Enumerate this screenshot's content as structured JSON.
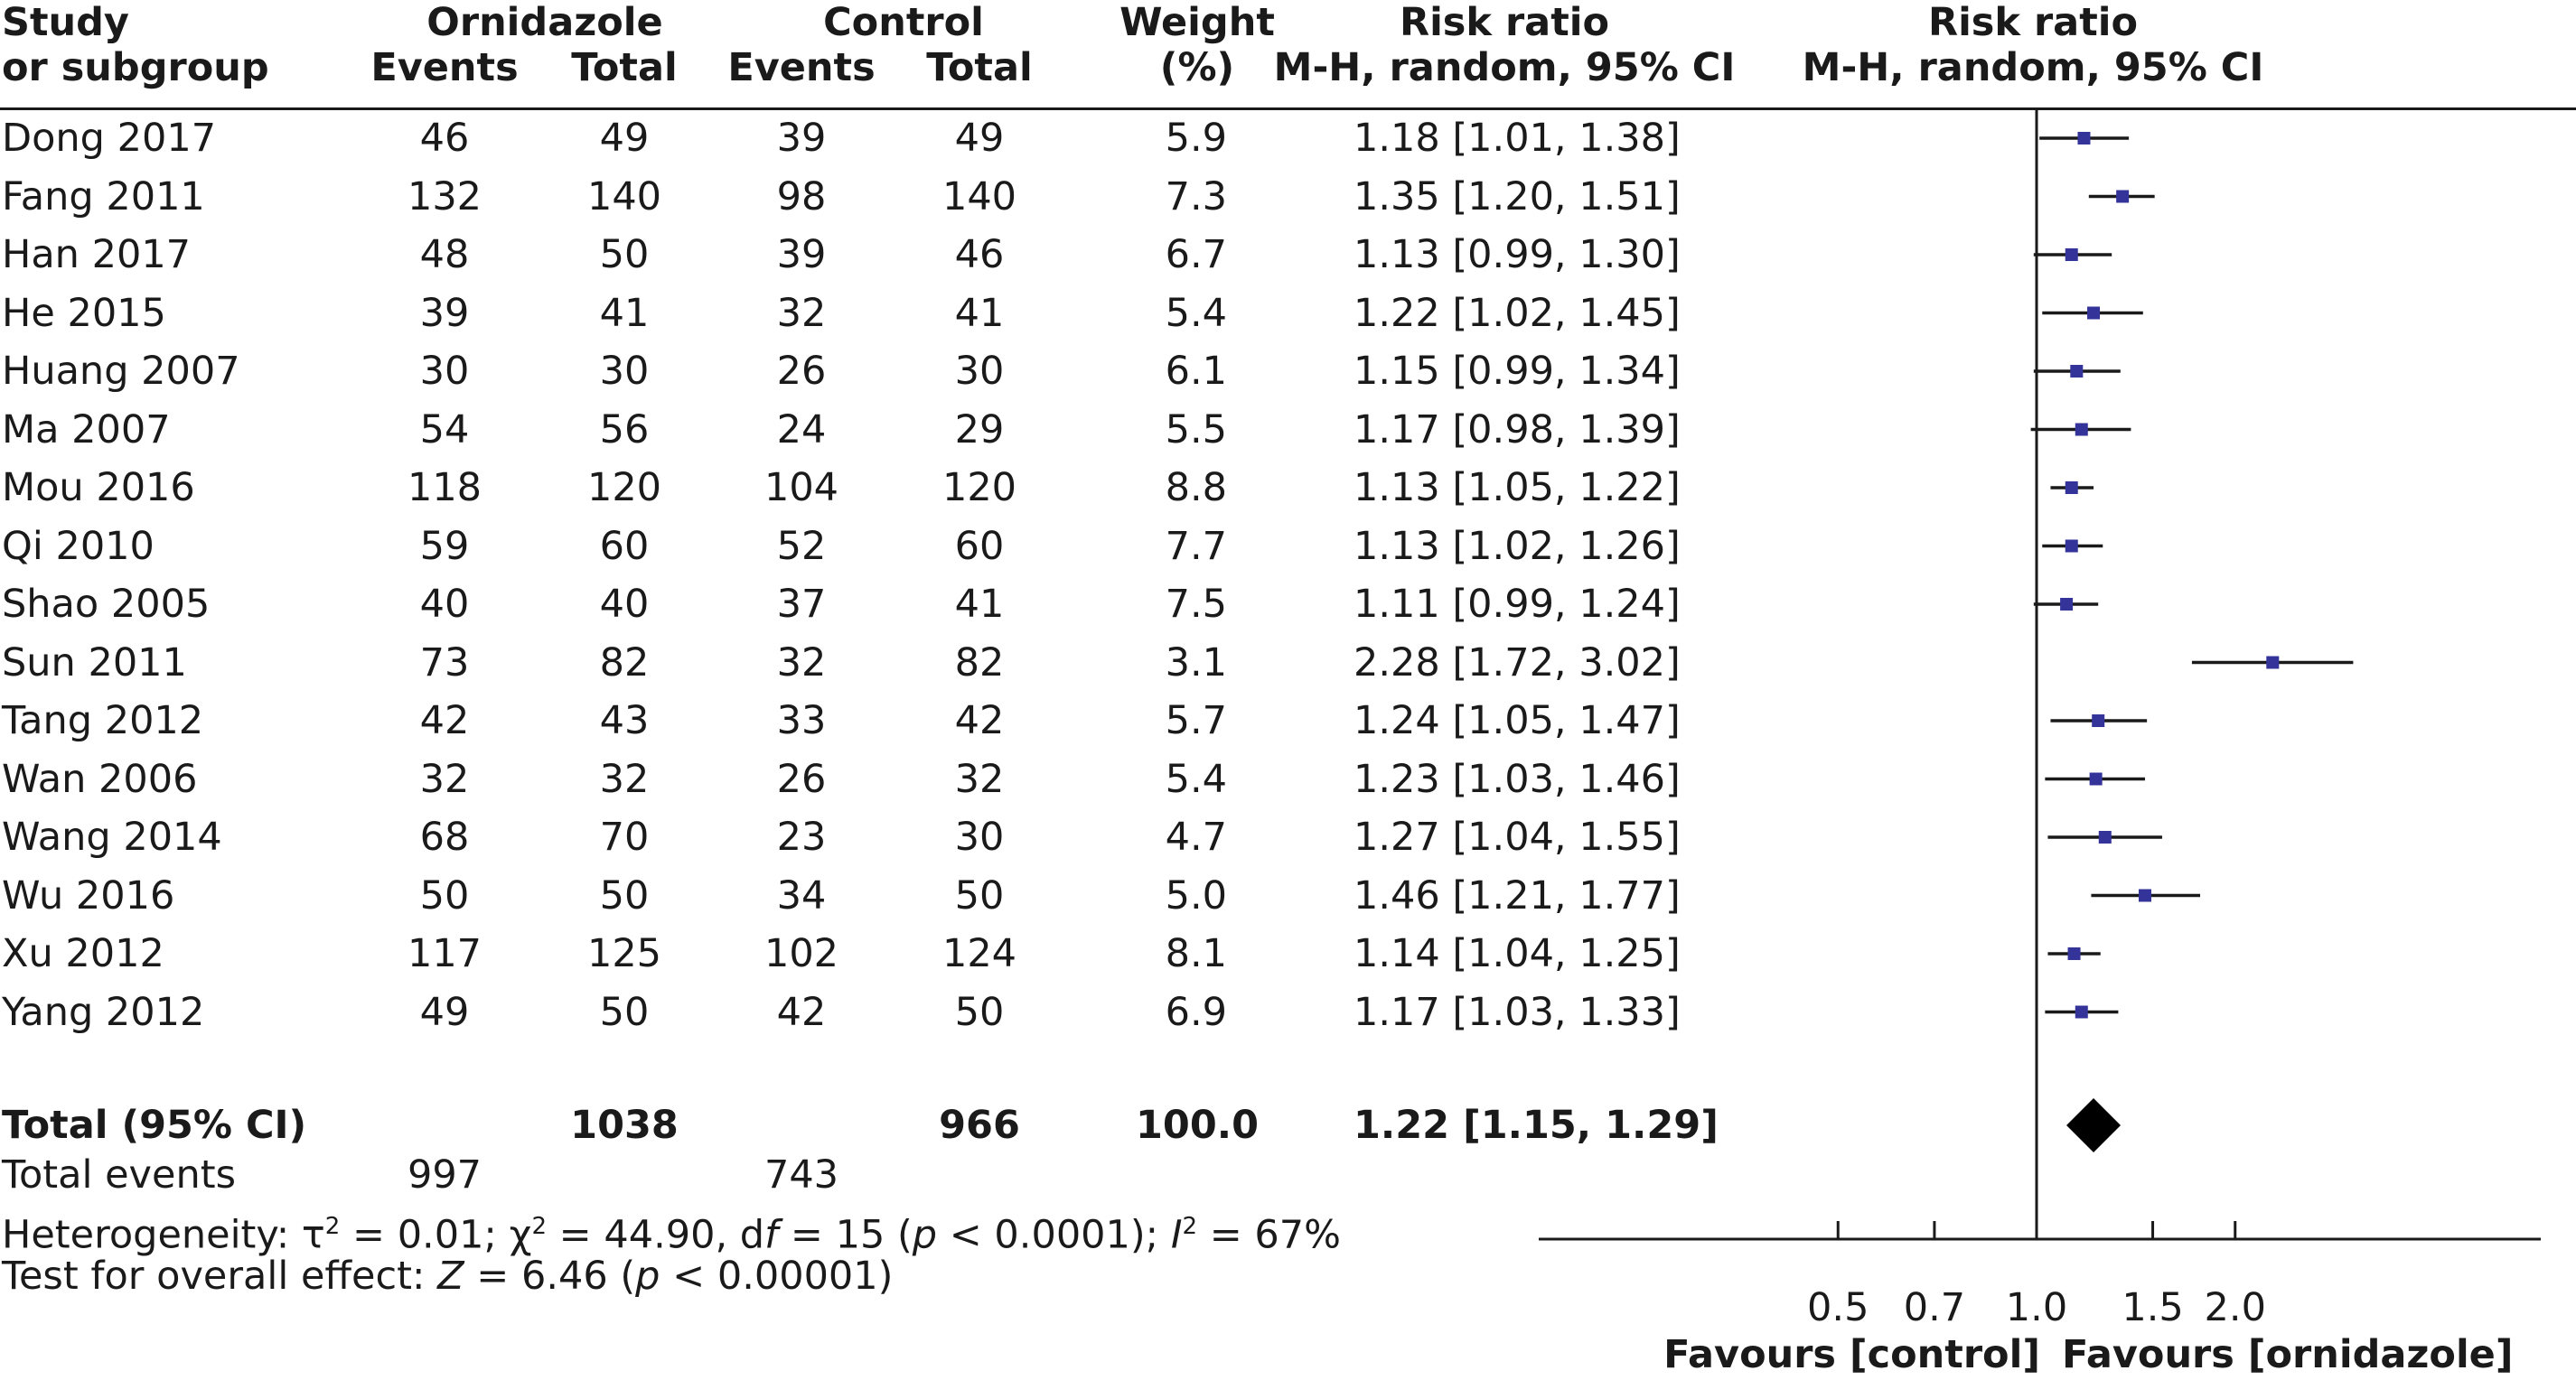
{
  "headers": {
    "study": [
      "Study",
      "or subgroup"
    ],
    "group1": "Ornidazole",
    "group2": "Control",
    "events": "Events",
    "total": "Total",
    "weight": [
      "Weight",
      "(%)"
    ],
    "rr_text": [
      "Risk ratio",
      "M-H, random, 95% CI"
    ],
    "rr_plot": [
      "Risk ratio",
      "M-H, random, 95% CI"
    ]
  },
  "studies": [
    {
      "name": "Dong 2017",
      "e1": "46",
      "t1": "49",
      "e2": "39",
      "t2": "49",
      "weight": "5.9",
      "ci_text": "1.18 [1.01, 1.38]"
    },
    {
      "name": "Fang 2011",
      "e1": "132",
      "t1": "140",
      "e2": "98",
      "t2": "140",
      "weight": "7.3",
      "ci_text": "1.35 [1.20, 1.51]"
    },
    {
      "name": "Han 2017",
      "e1": "48",
      "t1": "50",
      "e2": "39",
      "t2": "46",
      "weight": "6.7",
      "ci_text": "1.13 [0.99, 1.30]"
    },
    {
      "name": "He 2015",
      "e1": "39",
      "t1": "41",
      "e2": "32",
      "t2": "41",
      "weight": "5.4",
      "ci_text": "1.22 [1.02, 1.45]"
    },
    {
      "name": "Huang 2007",
      "e1": "30",
      "t1": "30",
      "e2": "26",
      "t2": "30",
      "weight": "6.1",
      "ci_text": "1.15 [0.99, 1.34]"
    },
    {
      "name": "Ma 2007",
      "e1": "54",
      "t1": "56",
      "e2": "24",
      "t2": "29",
      "weight": "5.5",
      "ci_text": "1.17 [0.98, 1.39]"
    },
    {
      "name": "Mou 2016",
      "e1": "118",
      "t1": "120",
      "e2": "104",
      "t2": "120",
      "weight": "8.8",
      "ci_text": "1.13 [1.05, 1.22]"
    },
    {
      "name": "Qi 2010",
      "e1": "59",
      "t1": "60",
      "e2": "52",
      "t2": "60",
      "weight": "7.7",
      "ci_text": "1.13 [1.02, 1.26]"
    },
    {
      "name": "Shao 2005",
      "e1": "40",
      "t1": "40",
      "e2": "37",
      "t2": "41",
      "weight": "7.5",
      "ci_text": "1.11 [0.99, 1.24]"
    },
    {
      "name": "Sun 2011",
      "e1": "73",
      "t1": "82",
      "e2": "32",
      "t2": "82",
      "weight": "3.1",
      "ci_text": "2.28 [1.72, 3.02]"
    },
    {
      "name": "Tang 2012",
      "e1": "42",
      "t1": "43",
      "e2": "33",
      "t2": "42",
      "weight": "5.7",
      "ci_text": "1.24 [1.05, 1.47]"
    },
    {
      "name": "Wan 2006",
      "e1": "32",
      "t1": "32",
      "e2": "26",
      "t2": "32",
      "weight": "5.4",
      "ci_text": "1.23 [1.03, 1.46]"
    },
    {
      "name": "Wang 2014",
      "e1": "68",
      "t1": "70",
      "e2": "23",
      "t2": "30",
      "weight": "4.7",
      "ci_text": "1.27 [1.04, 1.55]"
    },
    {
      "name": "Wu 2016",
      "e1": "50",
      "t1": "50",
      "e2": "34",
      "t2": "50",
      "weight": "5.0",
      "ci_text": "1.46 [1.21, 1.77]"
    },
    {
      "name": "Xu 2012",
      "e1": "117",
      "t1": "125",
      "e2": "102",
      "t2": "124",
      "weight": "8.1",
      "ci_text": "1.14 [1.04, 1.25]"
    },
    {
      "name": "Yang 2012",
      "e1": "49",
      "t1": "50",
      "e2": "42",
      "t2": "50",
      "weight": "6.9",
      "ci_text": "1.17 [1.03, 1.33]"
    }
  ],
  "total": {
    "label": "Total (95% CI)",
    "t1": "1038",
    "t2": "966",
    "weight": "100.0",
    "ci_text": "1.22 [1.15, 1.29]"
  },
  "total_events": {
    "label": "Total events",
    "e1": "997",
    "e2": "743"
  },
  "heterogeneity": {
    "label": "Heterogeneity: ",
    "tau": "τ",
    "tau_val": " = 0.01; ",
    "chi": "χ",
    "chi_val": " = 44.90, d",
    "f": "f",
    "df_val": " = 15 (",
    "p": "p",
    "p_val": " < 0.0001); ",
    "I": "I",
    "I_val": " = 67%",
    "sup2": "2"
  },
  "overall": {
    "label": "Test for overall effect: ",
    "Z": "Z",
    "z_val": " = 6.46 (",
    "p": "p",
    "p_val": " < 0.00001)"
  },
  "axis": {
    "ticks": [
      "0.5",
      "0.7",
      "1.0",
      "1.5",
      "2.0"
    ],
    "favours_left": "Favours [control]",
    "favours_right": "Favours [ornidazole]"
  },
  "colors": {
    "point": "#33339a",
    "line": "#1a1a1a",
    "diamond": "#000000"
  },
  "chart_data": {
    "type": "forest",
    "scale": "log",
    "null_value": 1.0,
    "xticks": [
      0.5,
      0.7,
      1.0,
      1.5,
      2.0
    ],
    "series": [
      {
        "name": "Dong 2017",
        "rr": 1.18,
        "lo": 1.01,
        "hi": 1.38,
        "weight": 5.9
      },
      {
        "name": "Fang 2011",
        "rr": 1.35,
        "lo": 1.2,
        "hi": 1.51,
        "weight": 7.3
      },
      {
        "name": "Han 2017",
        "rr": 1.13,
        "lo": 0.99,
        "hi": 1.3,
        "weight": 6.7
      },
      {
        "name": "He 2015",
        "rr": 1.22,
        "lo": 1.02,
        "hi": 1.45,
        "weight": 5.4
      },
      {
        "name": "Huang 2007",
        "rr": 1.15,
        "lo": 0.99,
        "hi": 1.34,
        "weight": 6.1
      },
      {
        "name": "Ma 2007",
        "rr": 1.17,
        "lo": 0.98,
        "hi": 1.39,
        "weight": 5.5
      },
      {
        "name": "Mou 2016",
        "rr": 1.13,
        "lo": 1.05,
        "hi": 1.22,
        "weight": 8.8
      },
      {
        "name": "Qi 2010",
        "rr": 1.13,
        "lo": 1.02,
        "hi": 1.26,
        "weight": 7.7
      },
      {
        "name": "Shao 2005",
        "rr": 1.11,
        "lo": 0.99,
        "hi": 1.24,
        "weight": 7.5
      },
      {
        "name": "Sun 2011",
        "rr": 2.28,
        "lo": 1.72,
        "hi": 3.02,
        "weight": 3.1
      },
      {
        "name": "Tang 2012",
        "rr": 1.24,
        "lo": 1.05,
        "hi": 1.47,
        "weight": 5.7
      },
      {
        "name": "Wan 2006",
        "rr": 1.23,
        "lo": 1.03,
        "hi": 1.46,
        "weight": 5.4
      },
      {
        "name": "Wang 2014",
        "rr": 1.27,
        "lo": 1.04,
        "hi": 1.55,
        "weight": 4.7
      },
      {
        "name": "Wu 2016",
        "rr": 1.46,
        "lo": 1.21,
        "hi": 1.77,
        "weight": 5.0
      },
      {
        "name": "Xu 2012",
        "rr": 1.14,
        "lo": 1.04,
        "hi": 1.25,
        "weight": 8.1
      },
      {
        "name": "Yang 2012",
        "rr": 1.17,
        "lo": 1.03,
        "hi": 1.33,
        "weight": 6.9
      }
    ],
    "pooled": {
      "rr": 1.22,
      "lo": 1.15,
      "hi": 1.29
    }
  }
}
